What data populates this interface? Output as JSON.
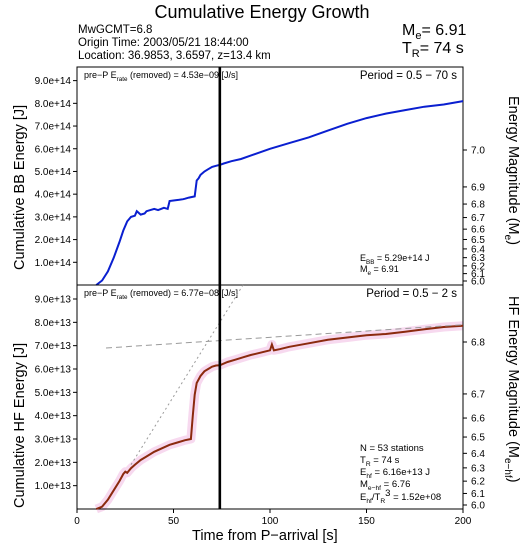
{
  "header": {
    "title": "Cumulative Energy Growth",
    "event": "MwGCMT=6.8",
    "origin": "Origin Time: 2003/05/21 18:44:00",
    "location": "Location: 36.9853, 3.6597, z=13.4 km",
    "me_label": "M",
    "me_sub": "e",
    "me_value": "= 6.91",
    "tr_label": "T",
    "tr_sub": "R",
    "tr_value": "= 74 s"
  },
  "axes": {
    "xlabel": "Time from P−arrival [s]",
    "top_ylabel": "Cumulative BB Energy [J]",
    "bottom_ylabel": "Cumulative HF Energy [J]",
    "top_right_label": "Energy Magnitude (M",
    "top_right_sub": "e",
    "top_right_close": ")",
    "bottom_right_label": "HF Energy Magnitude (M",
    "bottom_right_sub": "e−hf",
    "bottom_right_close": ")"
  },
  "chart_data": [
    {
      "type": "line",
      "panel": "top",
      "period": "Period = 0.5 − 70 s",
      "note": {
        "pre": "pre−P E",
        "sub": "rate",
        "post": " (removed) = 4.53e−09 [J/s]"
      },
      "xlim": [
        0,
        200
      ],
      "ylim": [
        0,
        960000000000000.0
      ],
      "yticks": [
        100000000000000.0,
        200000000000000.0,
        300000000000000.0,
        400000000000000.0,
        500000000000000.0,
        600000000000000.0,
        700000000000000.0,
        800000000000000.0,
        900000000000000.0
      ],
      "yticklabels": [
        "1.0e+14",
        "2.0e+14",
        "3.0e+14",
        "4.0e+14",
        "5.0e+14",
        "6.0e+14",
        "7.0e+14",
        "8.0e+14",
        "9.0e+14"
      ],
      "right_ticks": [
        "7.0",
        "6.9",
        "6.8",
        "6.7",
        "6.6",
        "6.5",
        "6.4",
        "6.3",
        "6.2",
        "6.1",
        "6.0"
      ],
      "series": [
        {
          "color": "#0a1fd0",
          "x": [
            10,
            13,
            16,
            19,
            22,
            24,
            26,
            28,
            30,
            31,
            33,
            35,
            36,
            38,
            40,
            42,
            45,
            47,
            48,
            50,
            53,
            55,
            56,
            58,
            61,
            62,
            63,
            64,
            66,
            68,
            70,
            72,
            74,
            76,
            80,
            85,
            90,
            95,
            100,
            110,
            120,
            130,
            140,
            150,
            160,
            170,
            180,
            190,
            200
          ],
          "y": [
            0,
            20000000000000.0,
            60000000000000.0,
            120000000000000.0,
            190000000000000.0,
            240000000000000.0,
            280000000000000.0,
            300000000000000.0,
            305000000000000.0,
            325000000000000.0,
            310000000000000.0,
            315000000000000.0,
            325000000000000.0,
            330000000000000.0,
            335000000000000.0,
            330000000000000.0,
            340000000000000.0,
            335000000000000.0,
            370000000000000.0,
            372000000000000.0,
            375000000000000.0,
            378000000000000.0,
            380000000000000.0,
            385000000000000.0,
            390000000000000.0,
            460000000000000.0,
            470000000000000.0,
            485000000000000.0,
            500000000000000.0,
            510000000000000.0,
            520000000000000.0,
            525000000000000.0,
            529000000000000.0,
            535000000000000.0,
            545000000000000.0,
            555000000000000.0,
            570000000000000.0,
            585000000000000.0,
            600000000000000.0,
            625000000000000.0,
            650000000000000.0,
            680000000000000.0,
            710000000000000.0,
            735000000000000.0,
            755000000000000.0,
            770000000000000.0,
            785000000000000.0,
            795000000000000.0,
            810000000000000.0
          ]
        }
      ],
      "annotations": {
        "ebb_pre": "E",
        "ebb_sub": "BB",
        "ebb_val": " = 5.29e+14 J",
        "me_pre": "M",
        "me_sub": "e",
        "me_val": " = 6.91"
      }
    },
    {
      "type": "line",
      "panel": "bottom",
      "period": "Period = 0.5 − 2 s",
      "note": {
        "pre": "pre−P E",
        "sub": "rate",
        "post": " (removed) = 6.77e−08 [J/s]"
      },
      "xlim": [
        0,
        200
      ],
      "ylim": [
        0,
        96000000000000.0
      ],
      "xticks": [
        0,
        50,
        100,
        150,
        200
      ],
      "xticklabels": [
        "0",
        "50",
        "100",
        "150",
        "200"
      ],
      "yticks": [
        10000000000000.0,
        20000000000000.0,
        30000000000000.0,
        40000000000000.0,
        50000000000000.0,
        60000000000000.0,
        70000000000000.0,
        80000000000000.0,
        90000000000000.0
      ],
      "yticklabels": [
        "1.0e+13",
        "2.0e+13",
        "3.0e+13",
        "4.0e+13",
        "5.0e+13",
        "6.0e+13",
        "7.0e+13",
        "8.0e+13",
        "9.0e+13"
      ],
      "right_ticks": [
        "6.8",
        "6.7",
        "6.6",
        "6.5",
        "6.4",
        "6.3",
        "6.2",
        "6.1",
        "6.0"
      ],
      "series": [
        {
          "color": "#8b2a0e",
          "x": [
            10,
            13,
            16,
            19,
            22,
            24,
            25,
            26,
            27,
            28,
            30,
            33,
            36,
            40,
            44,
            48,
            52,
            56,
            59,
            60,
            61,
            62,
            64,
            66,
            68,
            70,
            72,
            74,
            78,
            82,
            86,
            90,
            95,
            100,
            101,
            102,
            105,
            110,
            120,
            130,
            140,
            150,
            160,
            170,
            180,
            190,
            200
          ],
          "y": [
            0,
            1000000000000.0,
            4000000000000.0,
            8000000000000.0,
            12000000000000.0,
            15000000000000.0,
            16000000000000.0,
            15500000000000.0,
            16500000000000.0,
            17500000000000.0,
            19000000000000.0,
            21000000000000.0,
            22500000000000.0,
            24500000000000.0,
            26000000000000.0,
            27500000000000.0,
            28500000000000.0,
            29500000000000.0,
            30000000000000.0,
            40000000000000.0,
            49000000000000.0,
            54000000000000.0,
            57000000000000.0,
            59000000000000.0,
            60000000000000.0,
            61000000000000.0,
            61500000000000.0,
            61600000000000.0,
            63000000000000.0,
            64000000000000.0,
            65000000000000.0,
            66000000000000.0,
            67000000000000.0,
            68000000000000.0,
            70500000000000.0,
            68000000000000.0,
            68500000000000.0,
            69500000000000.0,
            71000000000000.0,
            72500000000000.0,
            73500000000000.0,
            74500000000000.0,
            75000000000000.0,
            76000000000000.0,
            77000000000000.0,
            78000000000000.0,
            78500000000000.0
          ]
        },
        {
          "color": "#9a9a9a",
          "dash": "6 4",
          "x": [
            15,
            200
          ],
          "y": [
            69000000000000.0,
            79000000000000.0
          ]
        },
        {
          "color": "#9a9a9a",
          "dash": "2 3",
          "x": [
            28,
            86
          ],
          "y": [
            19000000000000.0,
            96000000000000.0
          ]
        }
      ],
      "annotations": {
        "n": "N = 53 stations",
        "tr_pre": "T",
        "tr_sub": "R",
        "tr_val": " = 74  s",
        "ehf_pre": "E",
        "ehf_sub": "hf",
        "ehf_val": " = 6.16e+13 J",
        "mehf_pre": "M",
        "mehf_sub": "e−hf",
        "mehf_val": " = 6.76",
        "ratio_pre": "E",
        "ratio_sub": "hf",
        "ratio_mid": "/T",
        "ratio_sub2": "R",
        "ratio_sup": "3",
        "ratio_val": " =  1.52e+08"
      }
    }
  ],
  "marker_time": 74
}
